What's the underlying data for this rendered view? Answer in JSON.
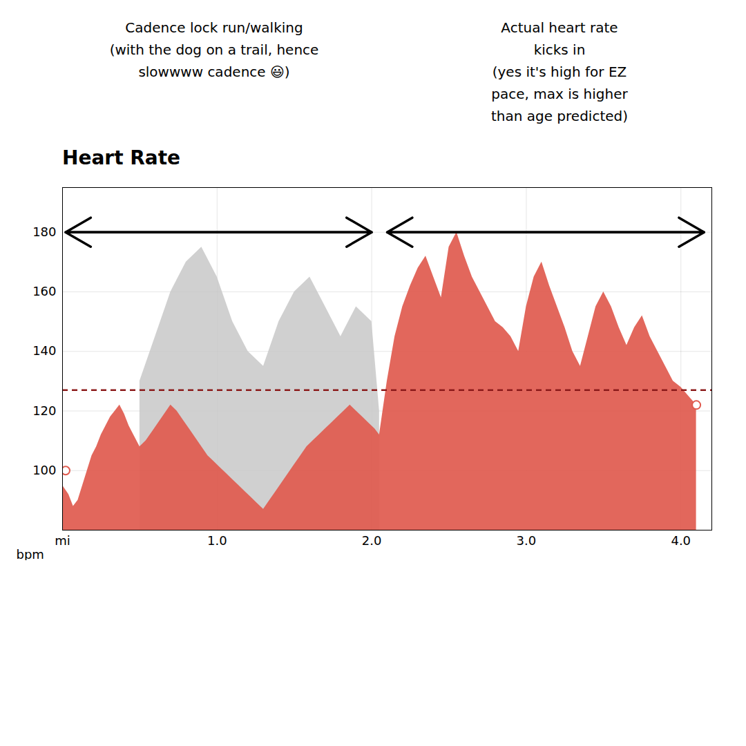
{
  "chart_data": {
    "type": "area",
    "title": "Heart Rate",
    "ylabel": "bpm",
    "annotations": [
      {
        "text": "Cadence lock run/walking\n(with the dog on a trail, hence\nslowwww cadence 😃)"
      },
      {
        "text": "Actual heart rate\nkicks in\n(yes it's high for EZ\npace, max is higher\nthan age predicted)"
      }
    ],
    "series": [
      {
        "color": "#C8C8C8",
        "x": [
          0.5,
          0.6,
          0.7,
          0.8,
          0.9,
          1.0,
          1.1,
          1.2,
          1.3,
          1.4,
          1.5,
          1.6,
          1.7,
          1.8,
          1.9,
          2.0,
          2.05
        ],
        "values": [
          130,
          145,
          160,
          170,
          175,
          165,
          150,
          140,
          135,
          150,
          160,
          165,
          155,
          145,
          155,
          150,
          120
        ]
      },
      {
        "color": "#E05A4E",
        "x": [
          0.0,
          0.04,
          0.07,
          0.1,
          0.13,
          0.16,
          0.19,
          0.22,
          0.25,
          0.28,
          0.31,
          0.34,
          0.37,
          0.4,
          0.43,
          0.46,
          0.5,
          0.54,
          0.58,
          0.62,
          0.66,
          0.7,
          0.74,
          0.78,
          0.82,
          0.86,
          0.9,
          0.94,
          0.98,
          1.02,
          1.06,
          1.1,
          1.14,
          1.18,
          1.22,
          1.26,
          1.3,
          1.34,
          1.38,
          1.42,
          1.46,
          1.5,
          1.54,
          1.58,
          1.62,
          1.66,
          1.7,
          1.74,
          1.78,
          1.82,
          1.86,
          1.9,
          1.94,
          1.98,
          2.02,
          2.05,
          2.1,
          2.15,
          2.2,
          2.25,
          2.3,
          2.35,
          2.4,
          2.45,
          2.5,
          2.55,
          2.6,
          2.65,
          2.7,
          2.75,
          2.8,
          2.85,
          2.9,
          2.95,
          3.0,
          3.05,
          3.1,
          3.15,
          3.2,
          3.25,
          3.3,
          3.35,
          3.4,
          3.45,
          3.5,
          3.55,
          3.6,
          3.65,
          3.7,
          3.75,
          3.8,
          3.85,
          3.9,
          3.95,
          4.0,
          4.05,
          4.1
        ],
        "values": [
          95,
          92,
          88,
          90,
          95,
          100,
          105,
          108,
          112,
          115,
          118,
          120,
          122,
          119,
          115,
          112,
          108,
          110,
          113,
          116,
          119,
          122,
          120,
          117,
          114,
          111,
          108,
          105,
          103,
          101,
          99,
          97,
          95,
          93,
          91,
          89,
          87,
          90,
          93,
          96,
          99,
          102,
          105,
          108,
          110,
          112,
          114,
          116,
          118,
          120,
          122,
          120,
          118,
          116,
          114,
          112,
          130,
          145,
          155,
          162,
          168,
          172,
          165,
          158,
          175,
          180,
          172,
          165,
          160,
          155,
          150,
          148,
          145,
          140,
          155,
          165,
          170,
          162,
          155,
          148,
          140,
          135,
          145,
          155,
          160,
          155,
          148,
          142,
          148,
          152,
          145,
          140,
          135,
          130,
          128,
          125,
          122
        ]
      }
    ],
    "reference_line": {
      "y": 127,
      "color": "#8B1A1A",
      "line_style": "dashed"
    },
    "points": [
      {
        "x": 0.02,
        "y": 100,
        "color": "#E05A4E",
        "marker": "open_circle"
      },
      {
        "x": 4.1,
        "y": 122,
        "color": "#E05A4E",
        "marker": "open_circle"
      }
    ],
    "arrows": [
      {
        "x1": 0.02,
        "x2": 2.0,
        "y": 180
      },
      {
        "x1": 2.1,
        "x2": 4.15,
        "y": 180
      }
    ],
    "xlim": [
      0,
      4.2
    ],
    "ylim": [
      80,
      195
    ],
    "xticks": [
      {
        "value": 0,
        "label": "mi"
      },
      {
        "value": 1.0,
        "label": "1.0"
      },
      {
        "value": 2.0,
        "label": "2.0"
      },
      {
        "value": 3.0,
        "label": "3.0"
      },
      {
        "value": 4.0,
        "label": "4.0"
      }
    ],
    "yticks": [
      100,
      120,
      140,
      160,
      180
    ],
    "grid": true
  }
}
